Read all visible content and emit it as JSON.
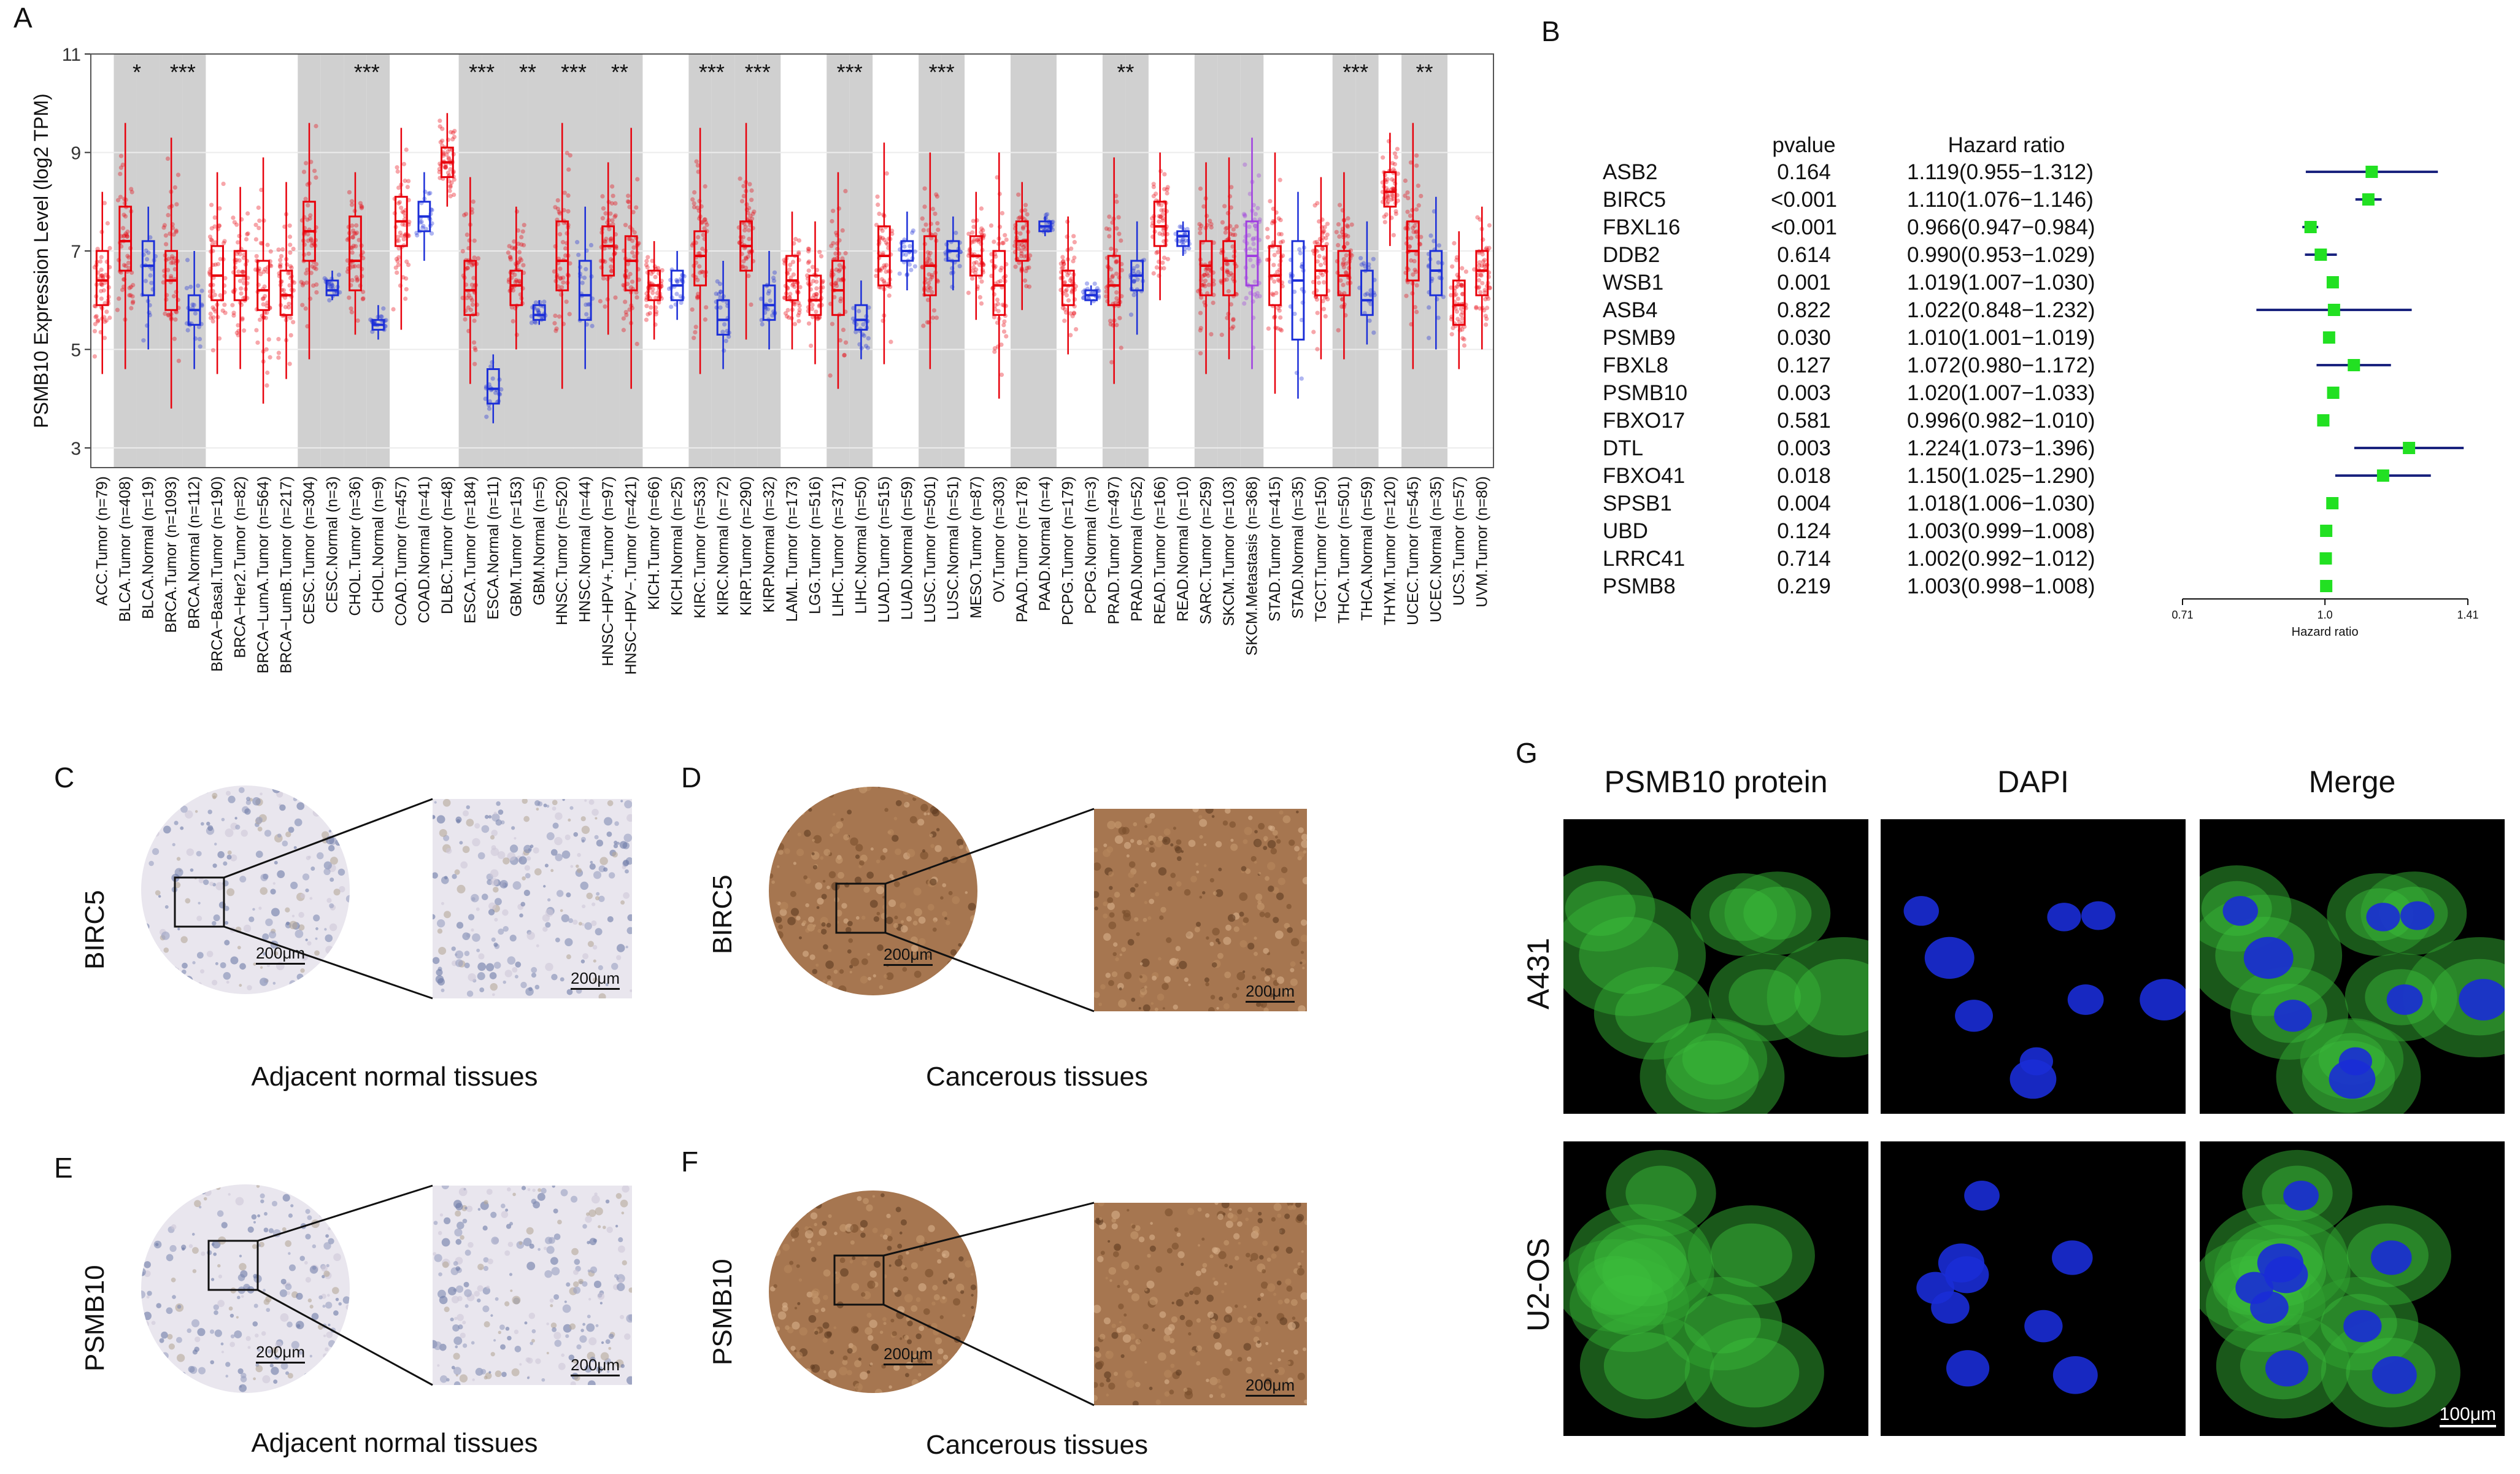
{
  "panels": {
    "A": "A",
    "B": "B",
    "C": "C",
    "D": "D",
    "E": "E",
    "F": "F",
    "G": "G"
  },
  "chart_data": [
    {
      "type": "box",
      "ylabel": "PSMB10 Expression Level (log2 TPM)",
      "ylim": [
        2.6,
        11
      ],
      "yticks": [
        3,
        5,
        7,
        9,
        11
      ],
      "grid": true,
      "categories": [
        {
          "label": "ACC.Tumor (n=79)",
          "kind": "t",
          "q1": 5.9,
          "med": 6.4,
          "q3": 7.0,
          "lo": 4.5,
          "hi": 8.2,
          "shade": false,
          "sig": ""
        },
        {
          "label": "BLCA.Tumor (n=408)",
          "kind": "t",
          "q1": 6.6,
          "med": 7.2,
          "q3": 7.9,
          "lo": 4.6,
          "hi": 9.6,
          "shade": true,
          "sig": "*"
        },
        {
          "label": "BLCA.Normal (n=19)",
          "kind": "n",
          "q1": 6.1,
          "med": 6.7,
          "q3": 7.2,
          "lo": 5.0,
          "hi": 7.9,
          "shade": true,
          "sig": ""
        },
        {
          "label": "BRCA.Tumor (n=1093)",
          "kind": "t",
          "q1": 5.8,
          "med": 6.4,
          "q3": 7.0,
          "lo": 3.8,
          "hi": 9.3,
          "shade": true,
          "sig": "***"
        },
        {
          "label": "BRCA.Normal (n=112)",
          "kind": "n",
          "q1": 5.5,
          "med": 5.8,
          "q3": 6.1,
          "lo": 4.6,
          "hi": 7.0,
          "shade": true,
          "sig": ""
        },
        {
          "label": "BRCA−Basal.Tumor (n=190)",
          "kind": "t",
          "q1": 6.0,
          "med": 6.5,
          "q3": 7.1,
          "lo": 4.5,
          "hi": 8.6,
          "shade": false,
          "sig": ""
        },
        {
          "label": "BRCA−Her2.Tumor (n=82)",
          "kind": "t",
          "q1": 6.0,
          "med": 6.5,
          "q3": 7.0,
          "lo": 4.6,
          "hi": 8.3,
          "shade": false,
          "sig": ""
        },
        {
          "label": "BRCA−LumA.Tumor (n=564)",
          "kind": "t",
          "q1": 5.8,
          "med": 6.2,
          "q3": 6.8,
          "lo": 3.9,
          "hi": 8.9,
          "shade": false,
          "sig": ""
        },
        {
          "label": "BRCA−LumB.Tumor (n=217)",
          "kind": "t",
          "q1": 5.7,
          "med": 6.1,
          "q3": 6.6,
          "lo": 4.4,
          "hi": 8.4,
          "shade": false,
          "sig": ""
        },
        {
          "label": "CESC.Tumor (n=304)",
          "kind": "t",
          "q1": 6.8,
          "med": 7.4,
          "q3": 8.0,
          "lo": 4.8,
          "hi": 9.6,
          "shade": true,
          "sig": ""
        },
        {
          "label": "CESC.Normal (n=3)",
          "kind": "n",
          "q1": 6.1,
          "med": 6.2,
          "q3": 6.4,
          "lo": 6.0,
          "hi": 6.6,
          "shade": true,
          "sig": ""
        },
        {
          "label": "CHOL.Tumor (n=36)",
          "kind": "t",
          "q1": 6.2,
          "med": 6.8,
          "q3": 7.7,
          "lo": 5.3,
          "hi": 8.6,
          "shade": true,
          "sig": "***"
        },
        {
          "label": "CHOL.Normal (n=9)",
          "kind": "n",
          "q1": 5.4,
          "med": 5.5,
          "q3": 5.6,
          "lo": 5.2,
          "hi": 5.9,
          "shade": true,
          "sig": ""
        },
        {
          "label": "COAD.Tumor (n=457)",
          "kind": "t",
          "q1": 7.1,
          "med": 7.6,
          "q3": 8.1,
          "lo": 5.4,
          "hi": 9.5,
          "shade": false,
          "sig": ""
        },
        {
          "label": "COAD.Normal (n=41)",
          "kind": "n",
          "q1": 7.4,
          "med": 7.7,
          "q3": 8.0,
          "lo": 6.8,
          "hi": 8.6,
          "shade": false,
          "sig": ""
        },
        {
          "label": "DLBC.Tumor (n=48)",
          "kind": "t",
          "q1": 8.5,
          "med": 8.8,
          "q3": 9.1,
          "lo": 7.9,
          "hi": 9.8,
          "shade": false,
          "sig": ""
        },
        {
          "label": "ESCA.Tumor (n=184)",
          "kind": "t",
          "q1": 5.7,
          "med": 6.2,
          "q3": 6.8,
          "lo": 4.3,
          "hi": 8.5,
          "shade": true,
          "sig": "***"
        },
        {
          "label": "ESCA.Normal (n=11)",
          "kind": "n",
          "q1": 3.9,
          "med": 4.2,
          "q3": 4.6,
          "lo": 3.5,
          "hi": 4.9,
          "shade": true,
          "sig": ""
        },
        {
          "label": "GBM.Tumor (n=153)",
          "kind": "t",
          "q1": 5.9,
          "med": 6.3,
          "q3": 6.6,
          "lo": 5.0,
          "hi": 7.9,
          "shade": true,
          "sig": "**"
        },
        {
          "label": "GBM.Normal (n=5)",
          "kind": "n",
          "q1": 5.6,
          "med": 5.7,
          "q3": 5.9,
          "lo": 5.5,
          "hi": 6.0,
          "shade": true,
          "sig": ""
        },
        {
          "label": "HNSC.Tumor (n=520)",
          "kind": "t",
          "q1": 6.2,
          "med": 6.8,
          "q3": 7.6,
          "lo": 4.2,
          "hi": 9.6,
          "shade": true,
          "sig": "***"
        },
        {
          "label": "HNSC.Normal (n=44)",
          "kind": "n",
          "q1": 5.6,
          "med": 6.1,
          "q3": 6.8,
          "lo": 4.6,
          "hi": 7.9,
          "shade": true,
          "sig": ""
        },
        {
          "label": "HNSC−HPV+.Tumor (n=97)",
          "kind": "t",
          "q1": 6.5,
          "med": 7.1,
          "q3": 7.5,
          "lo": 5.3,
          "hi": 8.8,
          "shade": true,
          "sig": "**"
        },
        {
          "label": "HNSC−HPV−.Tumor (n=421)",
          "kind": "t",
          "q1": 6.2,
          "med": 6.8,
          "q3": 7.3,
          "lo": 4.2,
          "hi": 9.5,
          "shade": true,
          "sig": ""
        },
        {
          "label": "KICH.Tumor (n=66)",
          "kind": "t",
          "q1": 6.0,
          "med": 6.3,
          "q3": 6.6,
          "lo": 5.2,
          "hi": 7.2,
          "shade": false,
          "sig": ""
        },
        {
          "label": "KICH.Normal (n=25)",
          "kind": "n",
          "q1": 6.0,
          "med": 6.3,
          "q3": 6.6,
          "lo": 5.6,
          "hi": 7.0,
          "shade": false,
          "sig": ""
        },
        {
          "label": "KIRC.Tumor (n=533)",
          "kind": "t",
          "q1": 6.3,
          "med": 6.9,
          "q3": 7.4,
          "lo": 4.5,
          "hi": 9.5,
          "shade": true,
          "sig": "***"
        },
        {
          "label": "KIRC.Normal (n=72)",
          "kind": "n",
          "q1": 5.3,
          "med": 5.6,
          "q3": 6.0,
          "lo": 4.6,
          "hi": 6.8,
          "shade": true,
          "sig": ""
        },
        {
          "label": "KIRP.Tumor (n=290)",
          "kind": "t",
          "q1": 6.6,
          "med": 7.1,
          "q3": 7.6,
          "lo": 5.2,
          "hi": 9.6,
          "shade": true,
          "sig": "***"
        },
        {
          "label": "KIRP.Normal (n=32)",
          "kind": "n",
          "q1": 5.6,
          "med": 5.9,
          "q3": 6.3,
          "lo": 5.0,
          "hi": 7.0,
          "shade": true,
          "sig": ""
        },
        {
          "label": "LAML.Tumor (n=173)",
          "kind": "t",
          "q1": 6.0,
          "med": 6.4,
          "q3": 6.9,
          "lo": 5.0,
          "hi": 7.8,
          "shade": false,
          "sig": ""
        },
        {
          "label": "LGG.Tumor (n=516)",
          "kind": "t",
          "q1": 5.7,
          "med": 6.0,
          "q3": 6.5,
          "lo": 4.7,
          "hi": 7.6,
          "shade": false,
          "sig": ""
        },
        {
          "label": "LIHC.Tumor (n=371)",
          "kind": "t",
          "q1": 5.7,
          "med": 6.2,
          "q3": 6.8,
          "lo": 4.2,
          "hi": 8.6,
          "shade": true,
          "sig": "***"
        },
        {
          "label": "LIHC.Normal (n=50)",
          "kind": "n",
          "q1": 5.4,
          "med": 5.6,
          "q3": 5.9,
          "lo": 4.8,
          "hi": 6.4,
          "shade": true,
          "sig": ""
        },
        {
          "label": "LUAD.Tumor (n=515)",
          "kind": "t",
          "q1": 6.3,
          "med": 6.9,
          "q3": 7.5,
          "lo": 4.7,
          "hi": 9.2,
          "shade": false,
          "sig": ""
        },
        {
          "label": "LUAD.Normal (n=59)",
          "kind": "n",
          "q1": 6.8,
          "med": 7.0,
          "q3": 7.2,
          "lo": 6.2,
          "hi": 7.8,
          "shade": false,
          "sig": ""
        },
        {
          "label": "LUSC.Tumor (n=501)",
          "kind": "t",
          "q1": 6.1,
          "med": 6.7,
          "q3": 7.3,
          "lo": 4.6,
          "hi": 9.0,
          "shade": true,
          "sig": "***"
        },
        {
          "label": "LUSC.Normal (n=51)",
          "kind": "n",
          "q1": 6.8,
          "med": 7.0,
          "q3": 7.2,
          "lo": 6.2,
          "hi": 7.7,
          "shade": true,
          "sig": ""
        },
        {
          "label": "MESO.Tumor (n=87)",
          "kind": "t",
          "q1": 6.5,
          "med": 6.9,
          "q3": 7.3,
          "lo": 5.6,
          "hi": 8.2,
          "shade": false,
          "sig": ""
        },
        {
          "label": "OV.Tumor (n=303)",
          "kind": "t",
          "q1": 5.7,
          "med": 6.3,
          "q3": 7.0,
          "lo": 4.0,
          "hi": 9.0,
          "shade": false,
          "sig": ""
        },
        {
          "label": "PAAD.Tumor (n=178)",
          "kind": "t",
          "q1": 6.8,
          "med": 7.2,
          "q3": 7.6,
          "lo": 5.8,
          "hi": 8.4,
          "shade": true,
          "sig": ""
        },
        {
          "label": "PAAD.Normal (n=4)",
          "kind": "n",
          "q1": 7.4,
          "med": 7.5,
          "q3": 7.6,
          "lo": 7.3,
          "hi": 7.7,
          "shade": true,
          "sig": ""
        },
        {
          "label": "PCPG.Tumor (n=179)",
          "kind": "t",
          "q1": 5.9,
          "med": 6.3,
          "q3": 6.6,
          "lo": 4.9,
          "hi": 7.7,
          "shade": false,
          "sig": ""
        },
        {
          "label": "PCPG.Normal (n=3)",
          "kind": "n",
          "q1": 6.0,
          "med": 6.1,
          "q3": 6.2,
          "lo": 5.9,
          "hi": 6.3,
          "shade": false,
          "sig": ""
        },
        {
          "label": "PRAD.Tumor (n=497)",
          "kind": "t",
          "q1": 5.9,
          "med": 6.3,
          "q3": 6.9,
          "lo": 4.3,
          "hi": 8.9,
          "shade": true,
          "sig": "**"
        },
        {
          "label": "PRAD.Normal (n=52)",
          "kind": "n",
          "q1": 6.2,
          "med": 6.5,
          "q3": 6.8,
          "lo": 5.3,
          "hi": 7.6,
          "shade": true,
          "sig": ""
        },
        {
          "label": "READ.Tumor (n=166)",
          "kind": "t",
          "q1": 7.1,
          "med": 7.5,
          "q3": 8.0,
          "lo": 6.0,
          "hi": 9.0,
          "shade": false,
          "sig": ""
        },
        {
          "label": "READ.Normal (n=10)",
          "kind": "n",
          "q1": 7.1,
          "med": 7.3,
          "q3": 7.4,
          "lo": 6.9,
          "hi": 7.6,
          "shade": false,
          "sig": ""
        },
        {
          "label": "SARC.Tumor (n=259)",
          "kind": "t",
          "q1": 6.1,
          "med": 6.7,
          "q3": 7.2,
          "lo": 4.5,
          "hi": 8.8,
          "shade": true,
          "sig": ""
        },
        {
          "label": "SKCM.Tumor (n=103)",
          "kind": "t",
          "q1": 6.1,
          "med": 6.8,
          "q3": 7.2,
          "lo": 4.8,
          "hi": 8.9,
          "shade": true,
          "sig": ""
        },
        {
          "label": "SKCM.Metastasis (n=368)",
          "kind": "m",
          "q1": 6.3,
          "med": 6.9,
          "q3": 7.6,
          "lo": 4.6,
          "hi": 9.3,
          "shade": true,
          "sig": ""
        },
        {
          "label": "STAD.Tumor (n=415)",
          "kind": "t",
          "q1": 5.9,
          "med": 6.5,
          "q3": 7.1,
          "lo": 4.1,
          "hi": 9.0,
          "shade": false,
          "sig": ""
        },
        {
          "label": "STAD.Normal (n=35)",
          "kind": "n",
          "q1": 5.2,
          "med": 6.4,
          "q3": 7.2,
          "lo": 4.0,
          "hi": 8.2,
          "shade": false,
          "sig": ""
        },
        {
          "label": "TGCT.Tumor (n=150)",
          "kind": "t",
          "q1": 6.1,
          "med": 6.6,
          "q3": 7.1,
          "lo": 4.8,
          "hi": 8.5,
          "shade": false,
          "sig": ""
        },
        {
          "label": "THCA.Tumor (n=501)",
          "kind": "t",
          "q1": 6.1,
          "med": 6.5,
          "q3": 7.0,
          "lo": 4.8,
          "hi": 8.6,
          "shade": true,
          "sig": "***"
        },
        {
          "label": "THCA.Normal (n=59)",
          "kind": "n",
          "q1": 5.7,
          "med": 6.0,
          "q3": 6.6,
          "lo": 5.1,
          "hi": 7.6,
          "shade": true,
          "sig": ""
        },
        {
          "label": "THYM.Tumor (n=120)",
          "kind": "t",
          "q1": 7.9,
          "med": 8.2,
          "q3": 8.6,
          "lo": 7.1,
          "hi": 9.4,
          "shade": false,
          "sig": ""
        },
        {
          "label": "UCEC.Tumor (n=545)",
          "kind": "t",
          "q1": 6.4,
          "med": 7.0,
          "q3": 7.6,
          "lo": 4.6,
          "hi": 9.6,
          "shade": true,
          "sig": "**"
        },
        {
          "label": "UCEC.Normal (n=35)",
          "kind": "n",
          "q1": 6.1,
          "med": 6.6,
          "q3": 7.0,
          "lo": 5.0,
          "hi": 8.1,
          "shade": true,
          "sig": ""
        },
        {
          "label": "UCS.Tumor (n=57)",
          "kind": "t",
          "q1": 5.5,
          "med": 5.9,
          "q3": 6.4,
          "lo": 4.6,
          "hi": 7.4,
          "shade": false,
          "sig": ""
        },
        {
          "label": "UVM.Tumor (n=80)",
          "kind": "t",
          "q1": 6.1,
          "med": 6.6,
          "q3": 7.0,
          "lo": 5.0,
          "hi": 7.9,
          "shade": false,
          "sig": ""
        }
      ],
      "colors": {
        "tumor": "#e8000b",
        "normal": "#1c2fd8",
        "metastasis": "#a040e0",
        "shade": "#d0d0d0"
      }
    },
    {
      "type": "forest",
      "header_pvalue": "pvalue",
      "header_hr": "Hazard ratio",
      "xlabel": "Hazard ratio",
      "xticks": [
        "0.71",
        "1.0",
        "1.41"
      ],
      "xscale": "log",
      "xlim": [
        0.71,
        1.41
      ],
      "rows": [
        {
          "gene": "ASB2",
          "p": "0.164",
          "ci": "1.119(0.955−1.312)",
          "hr": 1.119,
          "lo": 0.955,
          "hi": 1.312
        },
        {
          "gene": "BIRC5",
          "p": "<0.001",
          "ci": "1.110(1.076−1.146)",
          "hr": 1.11,
          "lo": 1.076,
          "hi": 1.146
        },
        {
          "gene": "FBXL16",
          "p": "<0.001",
          "ci": "0.966(0.947−0.984)",
          "hr": 0.966,
          "lo": 0.947,
          "hi": 0.984
        },
        {
          "gene": "DDB2",
          "p": "0.614",
          "ci": "0.990(0.953−1.029)",
          "hr": 0.99,
          "lo": 0.953,
          "hi": 1.029
        },
        {
          "gene": "WSB1",
          "p": "0.001",
          "ci": "1.019(1.007−1.030)",
          "hr": 1.019,
          "lo": 1.007,
          "hi": 1.03
        },
        {
          "gene": "ASB4",
          "p": "0.822",
          "ci": "1.022(0.848−1.232)",
          "hr": 1.022,
          "lo": 0.848,
          "hi": 1.232
        },
        {
          "gene": "PSMB9",
          "p": "0.030",
          "ci": "1.010(1.001−1.019)",
          "hr": 1.01,
          "lo": 1.001,
          "hi": 1.019
        },
        {
          "gene": "FBXL8",
          "p": "0.127",
          "ci": "1.072(0.980−1.172)",
          "hr": 1.072,
          "lo": 0.98,
          "hi": 1.172
        },
        {
          "gene": "PSMB10",
          "p": "0.003",
          "ci": "1.020(1.007−1.033)",
          "hr": 1.02,
          "lo": 1.007,
          "hi": 1.033
        },
        {
          "gene": "FBXO17",
          "p": "0.581",
          "ci": "0.996(0.982−1.010)",
          "hr": 0.996,
          "lo": 0.982,
          "hi": 1.01
        },
        {
          "gene": "DTL",
          "p": "0.003",
          "ci": "1.224(1.073−1.396)",
          "hr": 1.224,
          "lo": 1.073,
          "hi": 1.396
        },
        {
          "gene": "FBXO41",
          "p": "0.018",
          "ci": "1.150(1.025−1.290)",
          "hr": 1.15,
          "lo": 1.025,
          "hi": 1.29
        },
        {
          "gene": "SPSB1",
          "p": "0.004",
          "ci": "1.018(1.006−1.030)",
          "hr": 1.018,
          "lo": 1.006,
          "hi": 1.03
        },
        {
          "gene": "UBD",
          "p": "0.124",
          "ci": "1.003(0.999−1.008)",
          "hr": 1.003,
          "lo": 0.999,
          "hi": 1.008
        },
        {
          "gene": "LRRC41",
          "p": "0.714",
          "ci": "1.002(0.992−1.012)",
          "hr": 1.002,
          "lo": 0.992,
          "hi": 1.012
        },
        {
          "gene": "PSMB8",
          "p": "0.219",
          "ci": "1.003(0.998−1.008)",
          "hr": 1.003,
          "lo": 0.998,
          "hi": 1.008
        }
      ],
      "colors": {
        "ci": "#1a237e",
        "point": "#22e022"
      }
    }
  ],
  "ihc": {
    "C": {
      "gene": "BIRC5",
      "scale_core": "200μm",
      "scale_zoom": "200μm",
      "caption": "Adjacent normal tissues"
    },
    "D": {
      "gene": "BIRC5",
      "scale_core": "200μm",
      "scale_zoom": "200μm",
      "caption": "Cancerous tissues"
    },
    "E": {
      "gene": "PSMB10",
      "scale_core": "200μm",
      "scale_zoom": "200μm",
      "caption": "Adjacent normal tissues"
    },
    "F": {
      "gene": "PSMB10",
      "scale_core": "200μm",
      "scale_zoom": "200μm",
      "caption": "Cancerous tissues"
    }
  },
  "immunofluorescence": {
    "columns": [
      "PSMB10 protein",
      "DAPI",
      "Merge"
    ],
    "rows": [
      "A431",
      "U2-OS"
    ],
    "scale_bar": "100μm"
  }
}
